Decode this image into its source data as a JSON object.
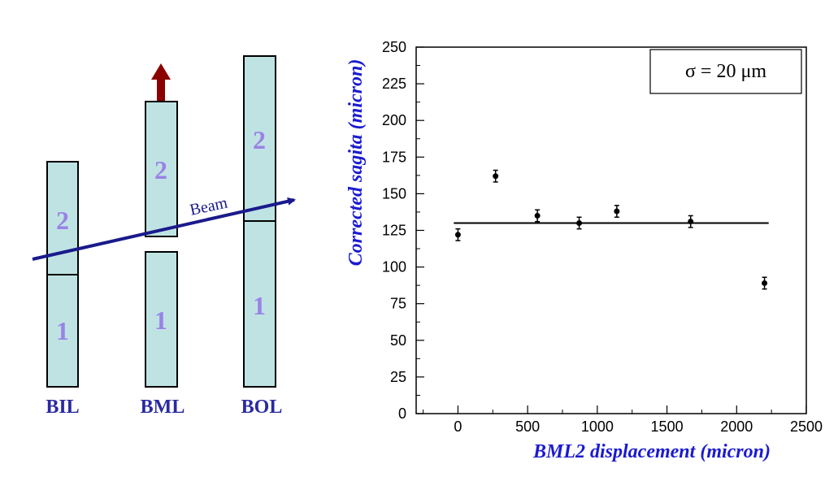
{
  "diagram": {
    "beam_label": "Beam",
    "chambers": [
      {
        "label": "BIL",
        "multilayers": [
          "2",
          "1"
        ]
      },
      {
        "label": "BML",
        "multilayers": [
          "2",
          "1"
        ]
      },
      {
        "label": "BOL",
        "multilayers": [
          "2",
          "1"
        ]
      }
    ],
    "colors": {
      "chamber": "#bfe3e3",
      "multilayer_numbers": "#9a82e6",
      "chamber_labels": "#2a2aa0",
      "beam": "#1a1a8c",
      "arrow": "#8b0000"
    }
  },
  "chart_data": {
    "type": "scatter",
    "xlabel": "BML2 displacement (micron)",
    "ylabel": "Corrected sagita (micron)",
    "xlim": [
      -300,
      2500
    ],
    "ylim": [
      0,
      250
    ],
    "xticks": [
      "0",
      "500",
      "1000",
      "1500",
      "2000",
      "2500"
    ],
    "yticks": [
      "0",
      "25",
      "50",
      "75",
      "100",
      "125",
      "150",
      "175",
      "200",
      "225",
      "250"
    ],
    "legend_text": "σ = 20 μm",
    "points": [
      {
        "x": 0,
        "y": 122,
        "err": 4
      },
      {
        "x": 270,
        "y": 162,
        "err": 4
      },
      {
        "x": 570,
        "y": 135,
        "err": 4
      },
      {
        "x": 870,
        "y": 130,
        "err": 4
      },
      {
        "x": 1140,
        "y": 138,
        "err": 4
      },
      {
        "x": 1670,
        "y": 131,
        "err": 4
      },
      {
        "x": 2200,
        "y": 89,
        "err": 4
      }
    ],
    "fit_line": {
      "x_start": -30,
      "x_end": 2230,
      "y": 130
    },
    "grid": false,
    "colors": {
      "axis_titles": "#1a1ad0",
      "points": "#000000"
    }
  }
}
